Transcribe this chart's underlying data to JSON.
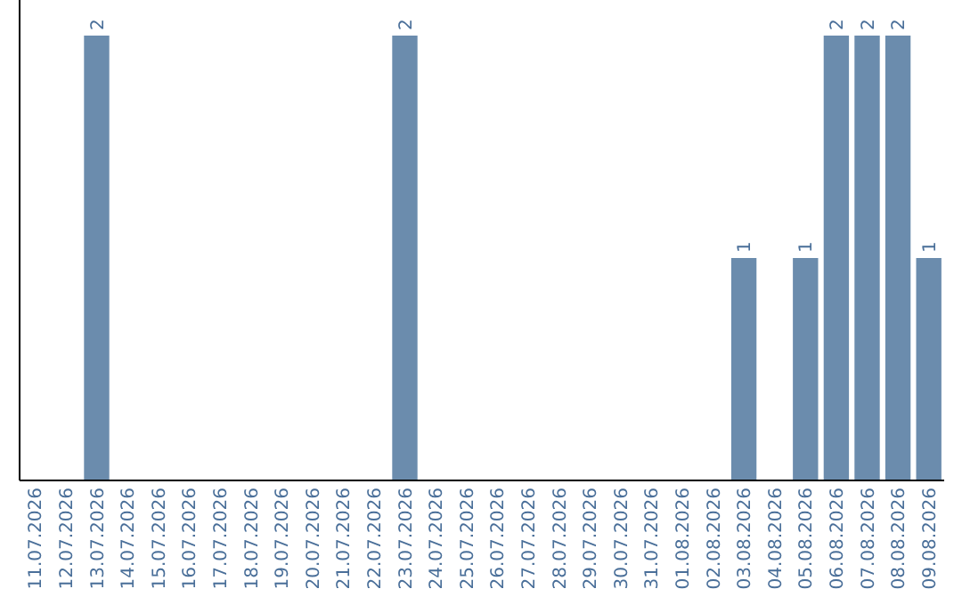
{
  "chart_data": {
    "type": "bar",
    "categories": [
      "11.07.2026",
      "12.07.2026",
      "13.07.2026",
      "14.07.2026",
      "15.07.2026",
      "16.07.2026",
      "17.07.2026",
      "18.07.2026",
      "19.07.2026",
      "20.07.2026",
      "21.07.2026",
      "22.07.2026",
      "23.07.2026",
      "24.07.2026",
      "25.07.2026",
      "26.07.2026",
      "27.07.2026",
      "28.07.2026",
      "29.07.2026",
      "30.07.2026",
      "31.07.2026",
      "01.08.2026",
      "02.08.2026",
      "03.08.2026",
      "04.08.2026",
      "05.08.2026",
      "06.08.2026",
      "07.08.2026",
      "08.08.2026",
      "09.08.2026"
    ],
    "values": [
      0,
      0,
      2,
      0,
      0,
      0,
      0,
      0,
      0,
      0,
      0,
      0,
      2,
      0,
      0,
      0,
      0,
      0,
      0,
      0,
      0,
      0,
      0,
      1,
      0,
      1,
      2,
      2,
      2,
      1
    ],
    "value_labels": [
      null,
      null,
      "2",
      null,
      null,
      null,
      null,
      null,
      null,
      null,
      null,
      null,
      "2",
      null,
      null,
      null,
      null,
      null,
      null,
      null,
      null,
      null,
      null,
      "1",
      null,
      "1",
      "2",
      "2",
      "2",
      "1"
    ],
    "color": "#6b8cad",
    "tick_labels": "x"
  }
}
